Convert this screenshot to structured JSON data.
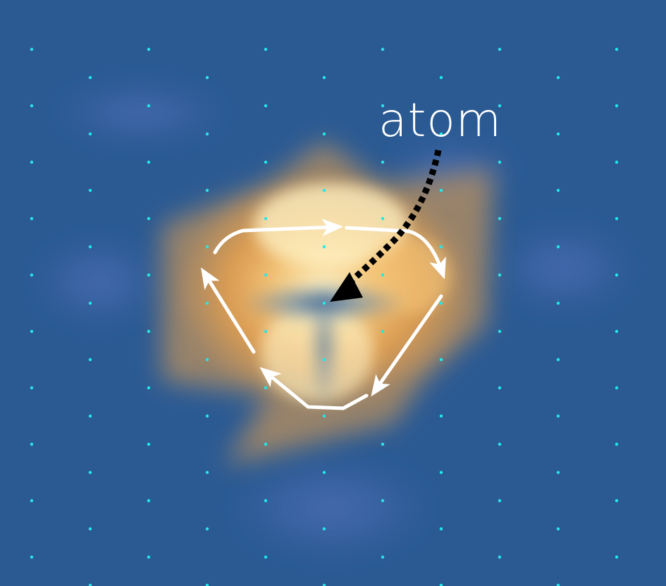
{
  "annotation": {
    "atom_label": "atom"
  },
  "colors": {
    "background": "#2b5a93",
    "background_light": "#4a6db5",
    "glow_orange": "#f2a54a",
    "glow_cream": "#fff4c8",
    "lattice_dot": "#22e8e8",
    "loop_arrow": "#ffffff",
    "pointer_arrow": "#000000"
  },
  "icons": {
    "lattice": "dot-grid",
    "loop": "circulating-arrows",
    "pointer": "dotted-arrow"
  }
}
